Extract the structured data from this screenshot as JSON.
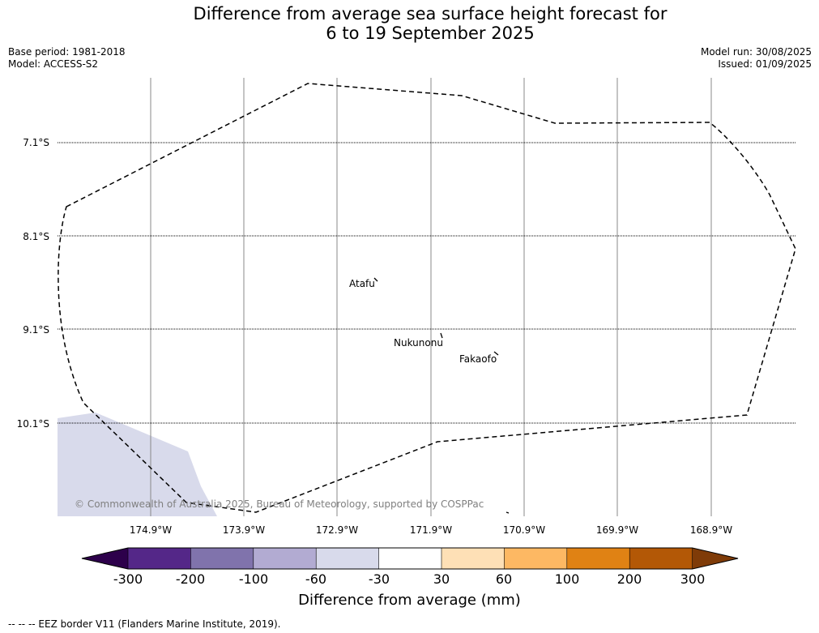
{
  "title_line1": "Difference from average sea surface height forecast for",
  "title_line2": "6 to 19 September 2025",
  "base_period": "Base period: 1981-2018",
  "model": "Model: ACCESS-S2",
  "model_run": "Model run: 30/08/2025",
  "issued": "Issued: 01/09/2025",
  "map": {
    "latitude_labels": [
      "7.1°S",
      "8.1°S",
      "9.1°S",
      "10.1°S"
    ],
    "longitude_labels": [
      "174.9°W",
      "173.9°W",
      "172.9°W",
      "171.9°W",
      "170.9°W",
      "169.9°W",
      "168.9°W"
    ],
    "places": [
      "Atafu",
      "Nukunonu",
      "Fakaofo"
    ],
    "copyright": "© Commonwealth of Australia 2025, Bureau of Meteorology, supported by COSPPac"
  },
  "colorbar": {
    "ticks": [
      "-300",
      "-200",
      "-100",
      "-60",
      "-30",
      "30",
      "60",
      "100",
      "200",
      "300"
    ],
    "colors": [
      "#2d004b",
      "#542788",
      "#8073ac",
      "#b2abd2",
      "#d8daeb",
      "#ffffff",
      "#fee0b6",
      "#fdb863",
      "#e08214",
      "#b35806",
      "#7f3b08"
    ],
    "label": "Difference from average (mm)"
  },
  "footer": "--  --  -- EEZ border V11 (Flanders Marine Institute, 2019)."
}
